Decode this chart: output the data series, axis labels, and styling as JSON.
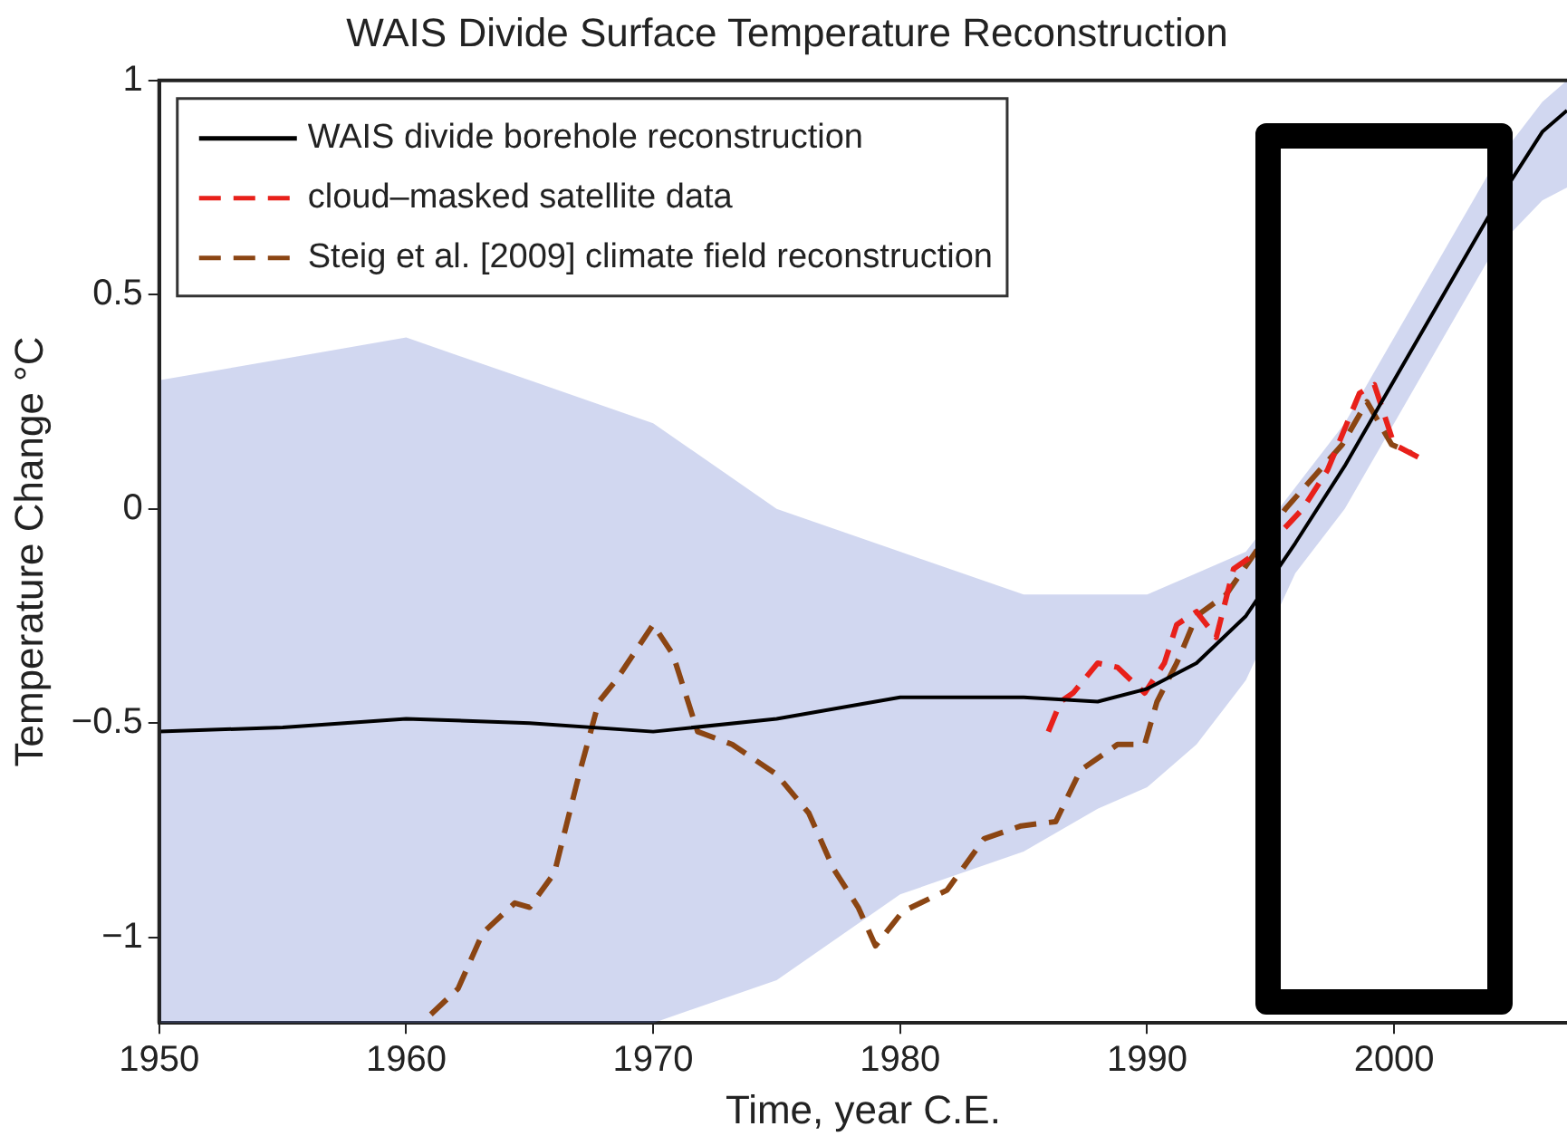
{
  "chart_data": {
    "type": "line",
    "title": "WAIS Divide Surface Temperature Reconstruction",
    "xlabel": "Time, year C.E.",
    "ylabel": "Temperature Change °C",
    "xlim": [
      1950,
      2007
    ],
    "xticks": [
      1950,
      1960,
      1970,
      1980,
      1990,
      2000
    ],
    "ylim": [
      -1.2,
      1
    ],
    "yticks": [
      -1,
      -0.5,
      0,
      0.5,
      1
    ],
    "grid": false,
    "legend": "top left",
    "marker": "none",
    "series": [
      {
        "name": "WAIS divide borehole reconstruction",
        "color": "#000000",
        "line_style": "solid",
        "x": [
          1950,
          1955,
          1960,
          1965,
          1970,
          1975,
          1980,
          1985,
          1988,
          1990,
          1992,
          1994,
          1996,
          1998,
          2000,
          2002,
          2004,
          2006,
          2007
        ],
        "values": [
          -0.52,
          -0.51,
          -0.49,
          -0.5,
          -0.52,
          -0.49,
          -0.44,
          -0.44,
          -0.45,
          -0.42,
          -0.36,
          -0.25,
          -0.08,
          0.1,
          0.3,
          0.5,
          0.7,
          0.88,
          0.93
        ],
        "lower": [
          -1.2,
          -1.2,
          -1.2,
          -1.2,
          -1.2,
          -1.1,
          -0.9,
          -0.8,
          -0.7,
          -0.65,
          -0.55,
          -0.4,
          -0.15,
          0.0,
          0.2,
          0.4,
          0.6,
          0.72,
          0.75
        ],
        "upper": [
          0.3,
          0.35,
          0.4,
          0.3,
          0.2,
          0.0,
          -0.1,
          -0.2,
          -0.2,
          -0.2,
          -0.15,
          -0.1,
          0.05,
          0.2,
          0.4,
          0.6,
          0.8,
          0.95,
          1.0
        ]
      },
      {
        "name": "cloud–masked satellite data",
        "color": "#e8201a",
        "line_style": "dashed",
        "x": [
          1986,
          1986.5,
          1987,
          1988,
          1988.8,
          1989.9,
          1990.7,
          1991.2,
          1992,
          1992.8,
          1993.5,
          1995,
          1996.3,
          1997.3,
          1998.6,
          1999.2,
          2000,
          2001
        ],
        "values": [
          -0.52,
          -0.45,
          -0.43,
          -0.36,
          -0.37,
          -0.43,
          -0.36,
          -0.27,
          -0.24,
          -0.3,
          -0.14,
          -0.08,
          0.0,
          0.09,
          0.27,
          0.29,
          0.15,
          0.12
        ]
      },
      {
        "name": "Steig et al. [2009] climate field reconstruction",
        "color": "#8b4513",
        "line_style": "dashed",
        "x": [
          1961,
          1962.1,
          1963.1,
          1964.4,
          1965,
          1966,
          1967,
          1967.8,
          1968.5,
          1970,
          1970.8,
          1971.8,
          1973.2,
          1975,
          1976.3,
          1977.3,
          1978.3,
          1979,
          1980.1,
          1981.9,
          1983.4,
          1984.9,
          1986.3,
          1987.3,
          1988.8,
          1989.9,
          1990.4,
          1991.2,
          1992,
          1993.2,
          1995.6,
          1997.9,
          1998.9,
          1999.9,
          2000.7
        ],
        "values": [
          -1.18,
          -1.12,
          -0.99,
          -0.92,
          -0.93,
          -0.85,
          -0.62,
          -0.45,
          -0.4,
          -0.27,
          -0.34,
          -0.52,
          -0.55,
          -0.62,
          -0.71,
          -0.84,
          -0.93,
          -1.02,
          -0.94,
          -0.89,
          -0.77,
          -0.74,
          -0.73,
          -0.61,
          -0.55,
          -0.55,
          -0.45,
          -0.36,
          -0.25,
          -0.2,
          0.0,
          0.15,
          0.25,
          0.15,
          0.13
        ]
      }
    ]
  }
}
